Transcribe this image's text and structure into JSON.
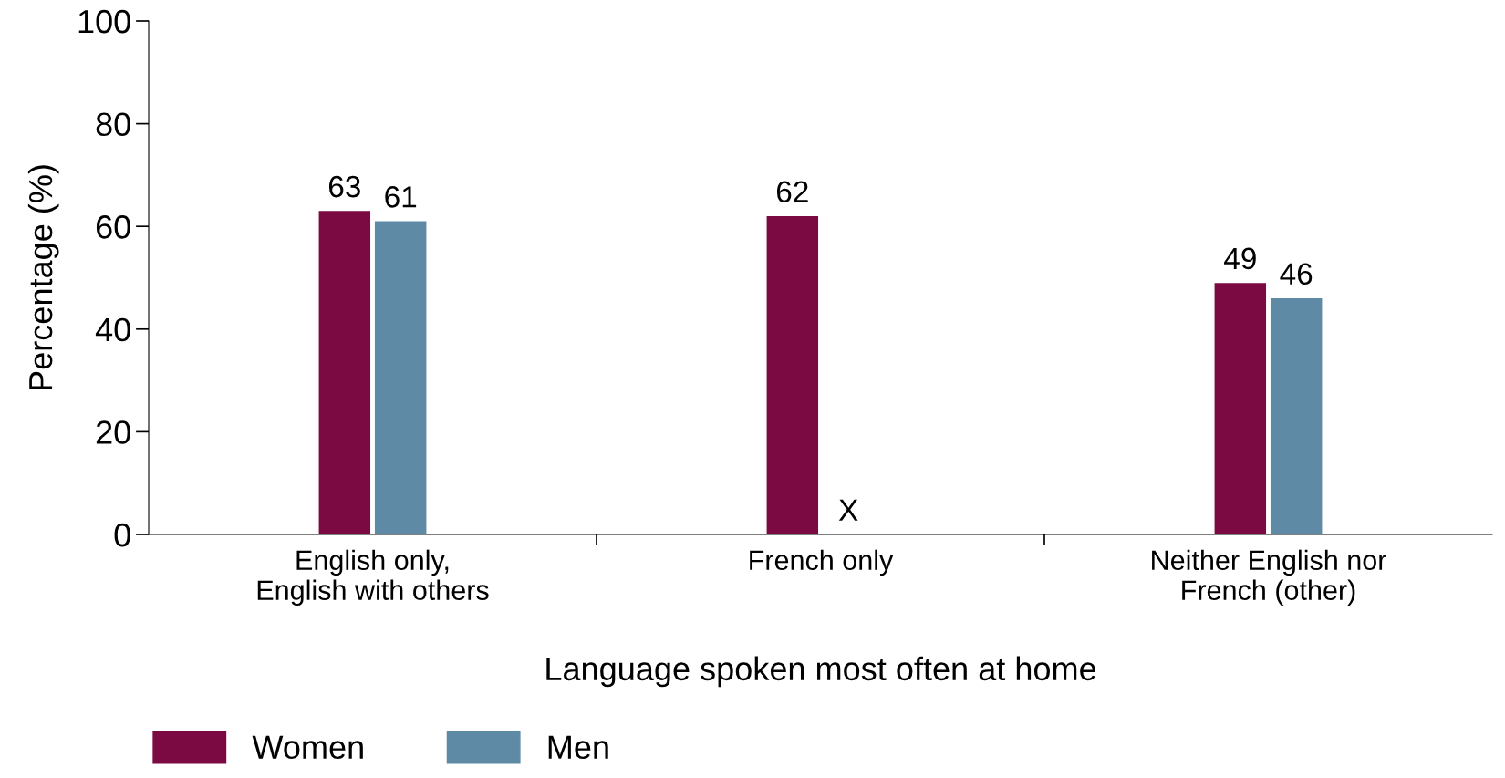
{
  "chart_data": {
    "type": "bar",
    "xlabel": "Language spoken most often at home",
    "ylabel": "Percentage (%)",
    "categories": [
      "English only,\nEnglish with others",
      "French only",
      "Neither English nor\nFrench (other)"
    ],
    "series": [
      {
        "name": "Women",
        "color": "#7b0a42",
        "values": [
          63,
          62,
          49
        ],
        "value_labels": [
          "63",
          "62",
          "49"
        ]
      },
      {
        "name": "Men",
        "color": "#5f8aa6",
        "values": [
          61,
          null,
          46
        ],
        "value_labels": [
          "61",
          "X",
          "46"
        ]
      }
    ],
    "ylim": [
      0,
      100
    ],
    "yticks": [
      0,
      20,
      40,
      60,
      80,
      100
    ],
    "grid": false,
    "legend": "bottom left"
  }
}
